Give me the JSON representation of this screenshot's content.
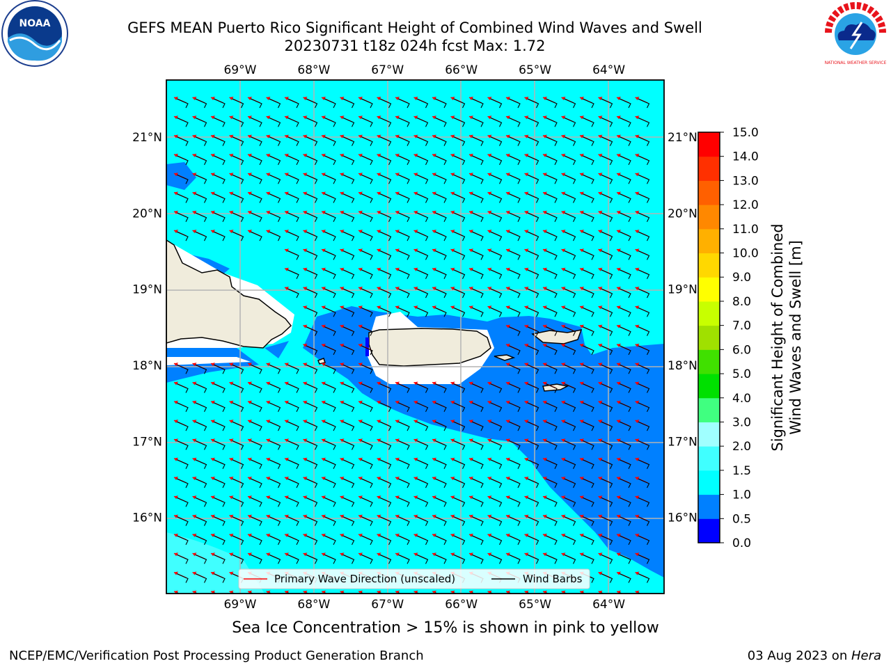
{
  "title_line1": "GEFS MEAN Puerto Rico Significant Height of Combined Wind Waves and Swell",
  "title_line2": "20230731 t18z 024h fcst   Max: 1.72",
  "sea_ice_note": "Sea Ice Concentration > 15% is shown in pink to yellow",
  "footer_left": "NCEP/EMC/Verification Post Processing Product Generation Branch",
  "footer_date": "03 Aug 2023 on ",
  "footer_machine": "Hera",
  "logos": {
    "left": "NOAA",
    "right": "NATIONAL WEATHER SERVICE"
  },
  "map": {
    "lon_ticks": [
      "69°W",
      "68°W",
      "67°W",
      "66°W",
      "65°W",
      "64°W"
    ],
    "lon_values": [
      -69,
      -68,
      -67,
      -66,
      -65,
      -64
    ],
    "lat_ticks": [
      "21°N",
      "20°N",
      "19°N",
      "18°N",
      "17°N",
      "16°N"
    ],
    "lat_values": [
      21,
      20,
      19,
      18,
      17,
      16
    ],
    "lon_range": [
      -70,
      -63.25
    ],
    "lat_range": [
      15,
      21.75
    ],
    "ocean_color": "#00ffff",
    "land_color": "#f0ecdc",
    "low_wave_color": "#0080ff"
  },
  "legend": {
    "wave_direction": "Primary Wave Direction (unscaled)",
    "wind_barbs": "Wind Barbs"
  },
  "colorbar": {
    "label_line1": "Significant Height of Combined",
    "label_line2": "Wind Waves and Swell [m]",
    "ticks": [
      "0.0",
      "0.5",
      "1.0",
      "1.5",
      "2.0",
      "3.0",
      "4.0",
      "5.0",
      "6.0",
      "7.0",
      "8.0",
      "9.0",
      "10.0",
      "11.0",
      "12.0",
      "13.0",
      "14.0",
      "15.0"
    ],
    "colors": [
      "#0000ff",
      "#0080ff",
      "#00ffff",
      "#40ffff",
      "#a0ffff",
      "#40ff80",
      "#00e000",
      "#40e000",
      "#a0e000",
      "#c8ff00",
      "#ffff00",
      "#ffd800",
      "#ffb000",
      "#ff8800",
      "#ff6000",
      "#ff3000",
      "#ff0000"
    ]
  }
}
